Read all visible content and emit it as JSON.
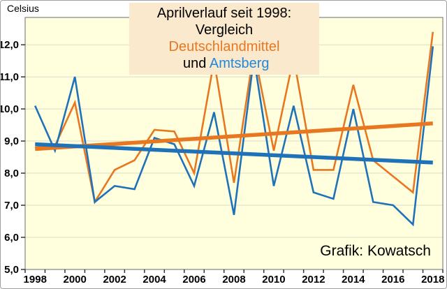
{
  "header": {
    "ylabel": "Celsius",
    "title_line1": "Aprilverlauf seit 1998: Vergleich",
    "title_series1": "Deutschlandmittel",
    "title_connector": " und ",
    "title_series2": "Amtsberg"
  },
  "credit": "Grafik: Kowatsch",
  "colors": {
    "deutschlandmittel": "#E87722",
    "amtsberg": "#1F72B8",
    "title_amtsberg": "#2288DD",
    "title_bg": "#FAE9CC",
    "plot_bg": "#FFFFDE",
    "gridline": "#DBDBCB",
    "axis": "#333333",
    "plot_border": "#6B6B6B",
    "text": "#000000"
  },
  "chart_data": {
    "type": "line",
    "title": "Aprilverlauf seit 1998: Vergleich Deutschlandmittel und Amtsberg",
    "xlabel": "",
    "ylabel": "Celsius",
    "x": [
      1998,
      1999,
      2000,
      2001,
      2002,
      2003,
      2004,
      2005,
      2006,
      2007,
      2008,
      2009,
      2010,
      2011,
      2012,
      2013,
      2014,
      2015,
      2016,
      2017,
      2018
    ],
    "x_tick_labels": [
      "1998",
      "2000",
      "2002",
      "2004",
      "2006",
      "2008",
      "2010",
      "2012",
      "2014",
      "2016",
      "2018"
    ],
    "x_label_step": 2,
    "ylim": [
      5.0,
      12.85
    ],
    "yticks": [
      {
        "value": 5,
        "label": "5,0"
      },
      {
        "value": 6,
        "label": "6,0"
      },
      {
        "value": 7,
        "label": "7,0"
      },
      {
        "value": 8,
        "label": "8,0"
      },
      {
        "value": 9,
        "label": "9,0"
      },
      {
        "value": 10,
        "label": "10,0"
      },
      {
        "value": 11,
        "label": "11,0"
      },
      {
        "value": 12,
        "label": "12,0"
      }
    ],
    "grid": true,
    "legend_position": "in-title",
    "series": [
      {
        "name": "Deutschlandmittel",
        "color": "#E87722",
        "width": 2.6,
        "values": [
          8.8,
          8.85,
          10.2,
          7.1,
          8.1,
          8.4,
          9.35,
          9.3,
          8.0,
          11.5,
          7.7,
          11.8,
          8.7,
          11.6,
          8.1,
          8.1,
          10.75,
          8.4,
          7.9,
          7.4,
          12.4
        ]
      },
      {
        "name": "Amtsberg",
        "color": "#1F72B8",
        "width": 2.6,
        "values": [
          10.1,
          8.7,
          11.0,
          7.1,
          7.6,
          7.5,
          9.1,
          8.9,
          7.6,
          9.9,
          6.7,
          11.6,
          7.6,
          10.1,
          7.4,
          7.2,
          10.0,
          7.1,
          7.0,
          6.4,
          11.95
        ]
      }
    ],
    "trend_lines": [
      {
        "name": "Deutschlandmittel Trend",
        "color": "#E87722",
        "width": 5.5,
        "start": 8.75,
        "end": 9.55
      },
      {
        "name": "Amtsberg Trend",
        "color": "#1F72B8",
        "width": 5.5,
        "start": 8.9,
        "end": 8.33
      }
    ]
  }
}
